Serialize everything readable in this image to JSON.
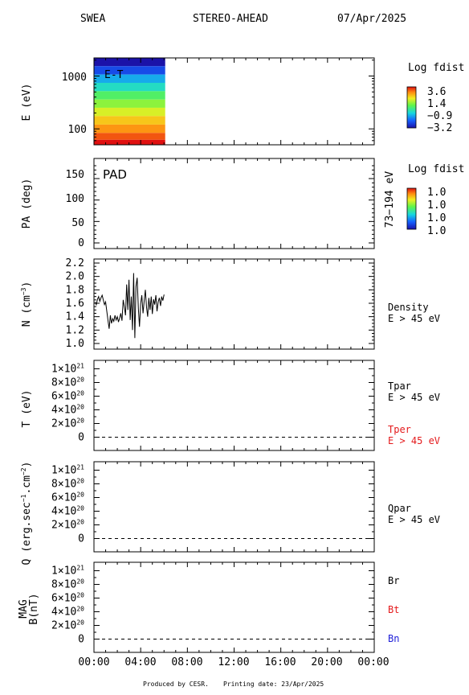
{
  "header": {
    "instrument": "SWEA",
    "spacecraft": "STEREO-AHEAD",
    "date": "07/Apr/2025"
  },
  "footer": {
    "produced": "Produced by CESR.",
    "printing": "Printing date: 23/Apr/2025"
  },
  "colors": {
    "tper": "#e41a1c",
    "bt": "#e41a1c",
    "bn": "#1f1fd8",
    "axis": "#000000"
  },
  "chart_data": [
    {
      "type": "heatmap",
      "panel": "energy_time",
      "label": "E-T",
      "ylabel": "E (eV)",
      "yscale": "log",
      "ylim": [
        50,
        2200
      ],
      "yticks": [
        100,
        1000
      ],
      "ytick_labels": [
        "100",
        "1000"
      ],
      "time_extent_hours": [
        0,
        6.1
      ],
      "energy_bands": [
        1840,
        1280,
        890,
        620,
        430,
        300,
        210,
        145,
        100,
        70,
        55
      ],
      "band_log_fdist": [
        -3.2,
        -2.3,
        -1.2,
        -0.5,
        0.3,
        0.9,
        1.5,
        2.1,
        2.6,
        3.1,
        3.6
      ],
      "colorbar": {
        "title": "Log fdist",
        "tick_labels": [
          "3.6",
          "1.4",
          "−0.9",
          "−3.2"
        ],
        "range": [
          -3.2,
          3.6
        ]
      }
    },
    {
      "type": "heatmap",
      "panel": "pitch_angle",
      "label": "PAD",
      "ylabel": "PA (deg)",
      "ylim": [
        0,
        180
      ],
      "yticks": [
        0,
        50,
        100,
        150
      ],
      "ytick_labels": [
        "0",
        "50",
        "100",
        "150"
      ],
      "energy_range_label": "73−194 eV",
      "colorbar": {
        "title": "Log fdist",
        "tick_labels": [
          "1.0",
          "1.0",
          "1.0",
          "1.0"
        ]
      }
    },
    {
      "type": "line",
      "panel": "density",
      "ylabel": "N (cm",
      "ylabel_exp": "−3",
      "ylabel_close": ")",
      "ylim": [
        1.0,
        2.2
      ],
      "yticks": [
        1.0,
        1.2,
        1.4,
        1.6,
        1.8,
        2.0,
        2.2
      ],
      "ytick_labels": [
        "1.0",
        "1.2",
        "1.4",
        "1.6",
        "1.8",
        "2.0",
        "2.2"
      ],
      "series": [
        {
          "name": "Density",
          "sub": "E > 45 eV",
          "x": [
            0.1,
            0.2,
            0.3,
            0.4,
            0.5,
            0.6,
            0.7,
            0.8,
            0.9,
            1.0,
            1.1,
            1.2,
            1.3,
            1.4,
            1.5,
            1.6,
            1.7,
            1.8,
            1.9,
            2.0,
            2.1,
            2.2,
            2.3,
            2.4,
            2.5,
            2.6,
            2.7,
            2.8,
            2.9,
            3.0,
            3.1,
            3.2,
            3.3,
            3.4,
            3.5,
            3.6,
            3.7,
            3.8,
            3.9,
            4.0,
            4.1,
            4.2,
            4.3,
            4.4,
            4.5,
            4.6,
            4.7,
            4.8,
            4.9,
            5.0,
            5.1,
            5.2,
            5.3,
            5.4,
            5.5,
            5.6,
            5.7,
            5.8,
            5.9,
            6.0
          ],
          "y": [
            1.62,
            1.58,
            1.66,
            1.7,
            1.63,
            1.68,
            1.72,
            1.65,
            1.58,
            1.62,
            1.48,
            1.35,
            1.22,
            1.42,
            1.3,
            1.37,
            1.33,
            1.42,
            1.35,
            1.4,
            1.32,
            1.38,
            1.45,
            1.34,
            1.65,
            1.55,
            1.42,
            1.88,
            1.5,
            1.95,
            1.35,
            1.7,
            1.2,
            2.05,
            1.08,
            1.85,
            1.98,
            1.52,
            1.25,
            1.6,
            1.72,
            1.45,
            1.63,
            1.8,
            1.55,
            1.4,
            1.68,
            1.5,
            1.7,
            1.44,
            1.66,
            1.58,
            1.72,
            1.48,
            1.62,
            1.68,
            1.56,
            1.7,
            1.64,
            1.73
          ]
        }
      ]
    },
    {
      "type": "line",
      "panel": "temperature",
      "ylabel": "T (eV)",
      "ylim": [
        -1e+20,
        1.1e+21
      ],
      "ytick_labels": [
        {
          "mant": "0",
          "exp": ""
        },
        {
          "mant": "2×10",
          "exp": "20"
        },
        {
          "mant": "4×10",
          "exp": "20"
        },
        {
          "mant": "6×10",
          "exp": "20"
        },
        {
          "mant": "8×10",
          "exp": "20"
        },
        {
          "mant": "1×10",
          "exp": "21"
        }
      ],
      "yticks": [
        0,
        2e+20,
        4e+20,
        6e+20,
        8e+20,
        1e+21
      ],
      "series": [
        {
          "name": "Tpar",
          "sub": "E > 45 eV",
          "color": "#000000",
          "x": [
            0,
            24
          ],
          "y": [
            0,
            0
          ]
        },
        {
          "name": "Tper",
          "sub": "E > 45 eV",
          "color": "#e41a1c",
          "x": [
            0,
            24
          ],
          "y": [
            0,
            0
          ]
        }
      ]
    },
    {
      "type": "line",
      "panel": "heat_flux",
      "ylabel": "Q (erg.sec",
      "ylabel_exp1": "−1",
      "ylabel_mid": ".cm",
      "ylabel_exp2": "−2",
      "ylabel_close": ")",
      "ylim": [
        -1e+20,
        1.1e+21
      ],
      "ytick_labels": [
        {
          "mant": "0",
          "exp": ""
        },
        {
          "mant": "2×10",
          "exp": "20"
        },
        {
          "mant": "4×10",
          "exp": "20"
        },
        {
          "mant": "6×10",
          "exp": "20"
        },
        {
          "mant": "8×10",
          "exp": "20"
        },
        {
          "mant": "1×10",
          "exp": "21"
        }
      ],
      "yticks": [
        0,
        2e+20,
        4e+20,
        6e+20,
        8e+20,
        1e+21
      ],
      "series": [
        {
          "name": "Qpar",
          "sub": "E > 45 eV",
          "color": "#000000",
          "x": [
            0,
            24
          ],
          "y": [
            0,
            0
          ]
        }
      ]
    },
    {
      "type": "line",
      "panel": "magnetic_field",
      "ylabel_top": "MAG",
      "ylabel": "B(nT)",
      "ylim": [
        -1e+20,
        1.1e+21
      ],
      "ytick_labels": [
        {
          "mant": "0",
          "exp": ""
        },
        {
          "mant": "2×10",
          "exp": "20"
        },
        {
          "mant": "4×10",
          "exp": "20"
        },
        {
          "mant": "6×10",
          "exp": "20"
        },
        {
          "mant": "8×10",
          "exp": "20"
        },
        {
          "mant": "1×10",
          "exp": "21"
        }
      ],
      "yticks": [
        0,
        2e+20,
        4e+20,
        6e+20,
        8e+20,
        1e+21
      ],
      "series": [
        {
          "name": "Br",
          "color": "#000000",
          "x": [
            0,
            24
          ],
          "y": [
            0,
            0
          ]
        },
        {
          "name": "Bt",
          "color": "#e41a1c",
          "x": [
            0,
            24
          ],
          "y": [
            0,
            0
          ]
        },
        {
          "name": "Bn",
          "color": "#1f1fd8",
          "x": [
            0,
            24
          ],
          "y": [
            0,
            0
          ]
        }
      ]
    }
  ],
  "xaxis": {
    "range_hours": [
      0,
      24
    ],
    "tick_labels": [
      "00:00",
      "04:00",
      "08:00",
      "12:00",
      "16:00",
      "20:00",
      "00:00"
    ]
  }
}
